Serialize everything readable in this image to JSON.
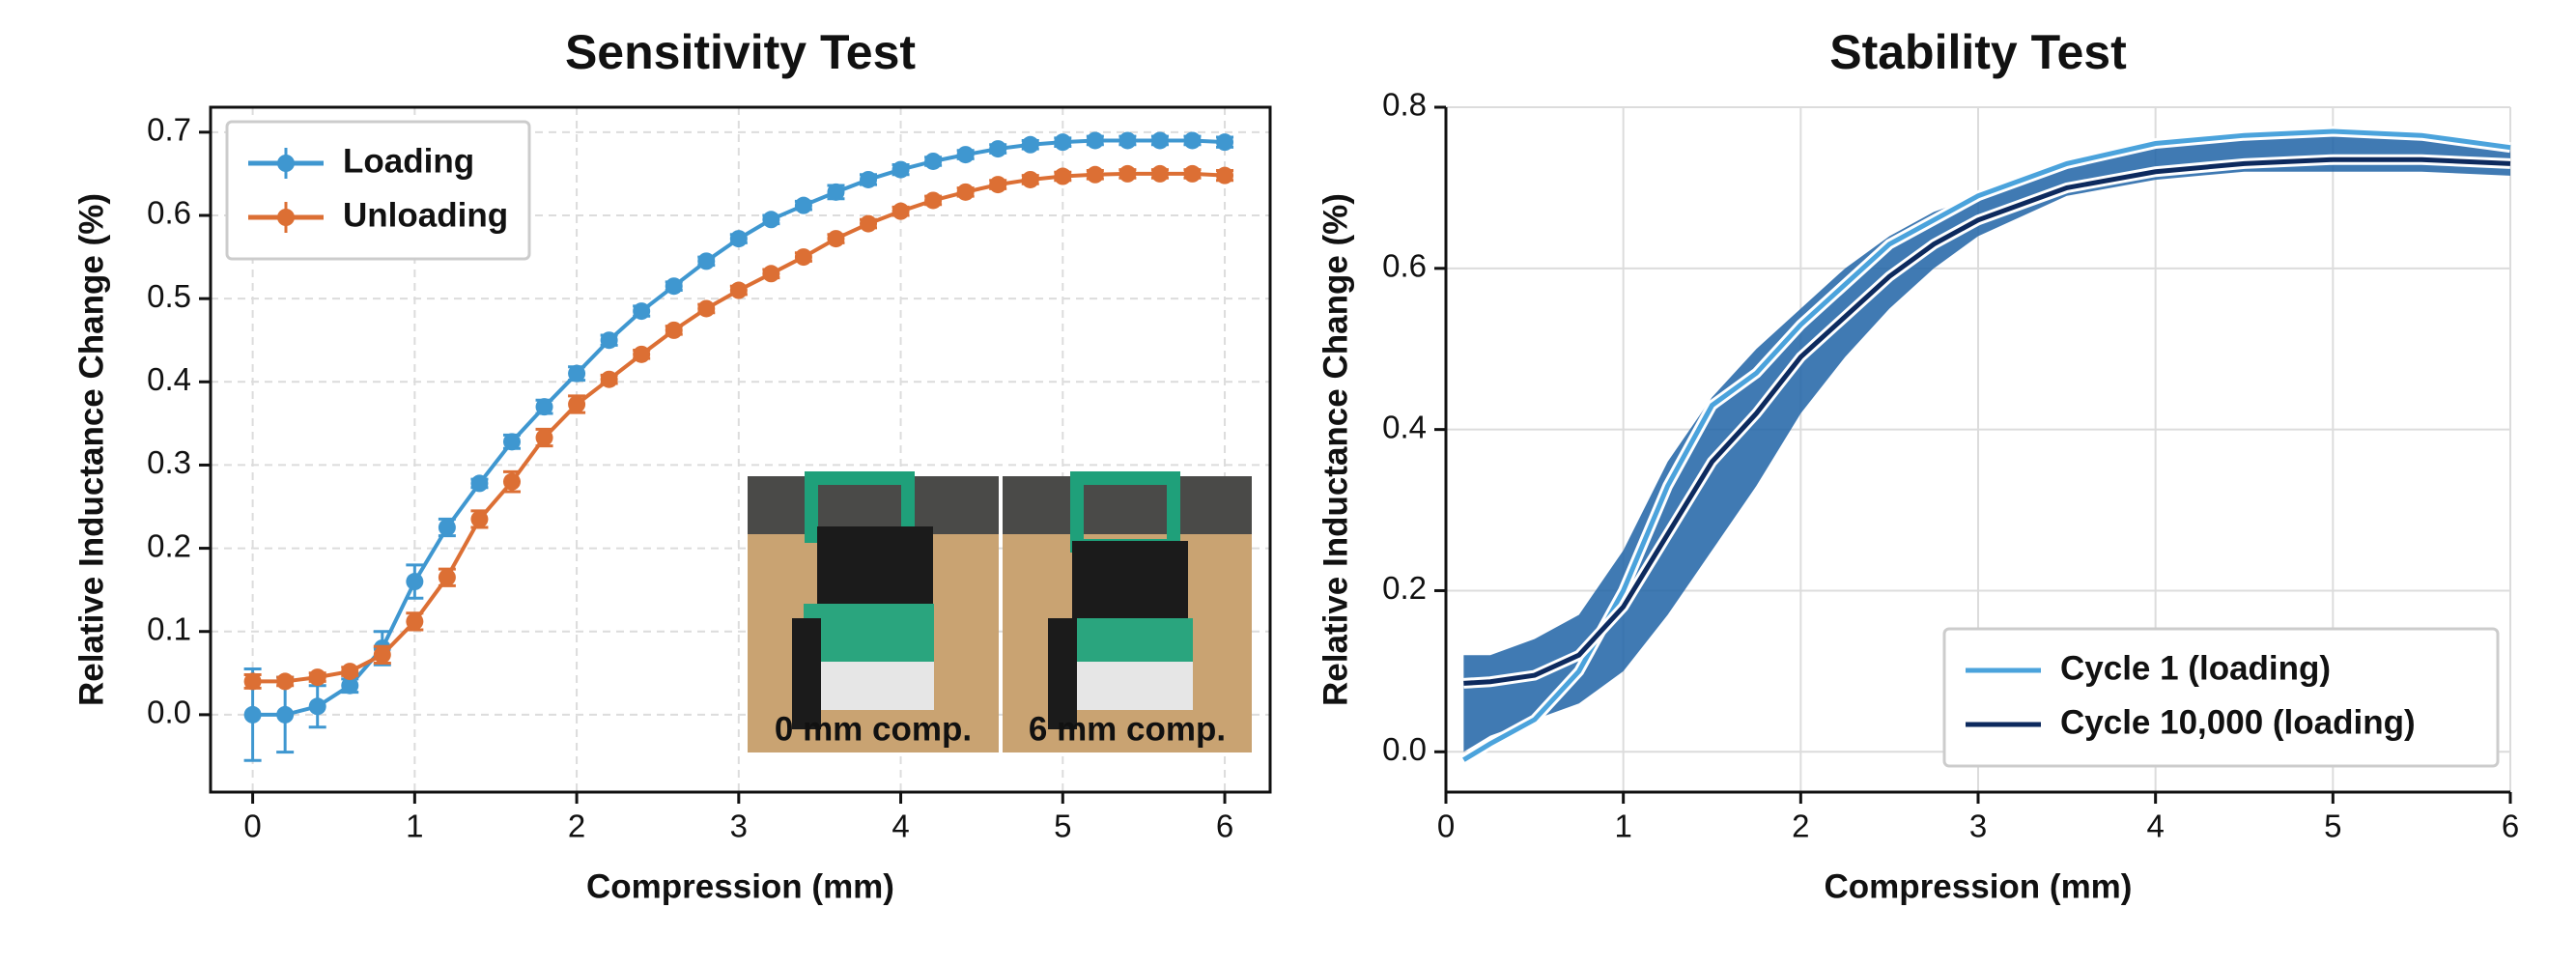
{
  "chart_data": [
    {
      "type": "line",
      "title": "Sensitivity Test",
      "xlabel": "Compression (mm)",
      "ylabel": "Relative Inductance Change (%)",
      "x": [
        0,
        0.2,
        0.4,
        0.6,
        0.8,
        1,
        1.2,
        1.4,
        1.6,
        1.8,
        2,
        2.2,
        2.4,
        2.6,
        2.8,
        3,
        3.2,
        3.4,
        3.6,
        3.8,
        4,
        4.2,
        4.4,
        4.6,
        4.8,
        5,
        5.2,
        5.4,
        5.6,
        5.8,
        6
      ],
      "series": [
        {
          "name": "Loading",
          "color": "#3f97d0",
          "values": [
            0.0,
            0.0,
            0.01,
            0.035,
            0.08,
            0.16,
            0.225,
            0.278,
            0.328,
            0.37,
            0.41,
            0.45,
            0.485,
            0.515,
            0.545,
            0.572,
            0.595,
            0.612,
            0.628,
            0.643,
            0.655,
            0.665,
            0.673,
            0.68,
            0.685,
            0.688,
            0.69,
            0.69,
            0.69,
            0.69,
            0.688
          ],
          "errors": [
            0.055,
            0.045,
            0.025,
            0.008,
            0.02,
            0.02,
            0.01,
            0.005,
            0.008,
            0.008,
            0.008,
            0.006,
            0.006,
            0.005,
            0.005,
            0.005,
            0.005,
            0.005,
            0.008,
            0.006,
            0.006,
            0.005,
            0.005,
            0.005,
            0.005,
            0.005,
            0.005,
            0.005,
            0.005,
            0.005,
            0.006
          ]
        },
        {
          "name": "Unloading",
          "color": "#dc6f34",
          "values": [
            0.04,
            0.04,
            0.045,
            0.052,
            0.072,
            0.112,
            0.165,
            0.235,
            0.28,
            0.333,
            0.373,
            0.403,
            0.433,
            0.462,
            0.488,
            0.51,
            0.53,
            0.55,
            0.572,
            0.59,
            0.605,
            0.618,
            0.628,
            0.637,
            0.643,
            0.647,
            0.649,
            0.65,
            0.65,
            0.65,
            0.648
          ],
          "errors": [
            0.008,
            0.005,
            0.005,
            0.005,
            0.01,
            0.01,
            0.01,
            0.01,
            0.012,
            0.01,
            0.01,
            0.005,
            0.005,
            0.005,
            0.005,
            0.005,
            0.005,
            0.005,
            0.005,
            0.005,
            0.005,
            0.005,
            0.005,
            0.005,
            0.005,
            0.005,
            0.005,
            0.005,
            0.005,
            0.005,
            0.006
          ]
        }
      ],
      "xlim": [
        -0.26,
        6.28
      ],
      "xticks": [
        0,
        1,
        2,
        3,
        4,
        5,
        6
      ],
      "ylim": [
        -0.093,
        0.73
      ],
      "yticks": [
        {
          "value": 0,
          "label": "0.0"
        },
        0.1,
        0.2,
        0.3,
        0.4,
        0.5,
        0.6,
        0.7
      ],
      "grid": true,
      "legend": "upper left",
      "annotations": [
        "0 mm comp.",
        "6 mm comp."
      ]
    },
    {
      "type": "band-line",
      "title": "Stability Test",
      "xlabel": "Compression (mm)",
      "ylabel": "Relative Inductance Change (%)",
      "x": [
        0.1,
        0.25,
        0.5,
        0.75,
        1,
        1.25,
        1.5,
        1.75,
        2,
        2.25,
        2.5,
        2.75,
        3,
        3.5,
        4,
        4.5,
        5,
        5.5,
        6
      ],
      "band": {
        "color": "#1f63a6",
        "lower": [
          0.0,
          0.02,
          0.04,
          0.06,
          0.1,
          0.17,
          0.25,
          0.33,
          0.42,
          0.49,
          0.55,
          0.6,
          0.64,
          0.69,
          0.71,
          0.72,
          0.72,
          0.72,
          0.715
        ],
        "upper": [
          0.12,
          0.12,
          0.14,
          0.17,
          0.25,
          0.36,
          0.44,
          0.5,
          0.55,
          0.6,
          0.64,
          0.67,
          0.69,
          0.73,
          0.75,
          0.76,
          0.765,
          0.76,
          0.75
        ]
      },
      "series": [
        {
          "name": "Cycle 1 (loading)",
          "color": "#4ba3dc",
          "values": [
            -0.01,
            0.01,
            0.04,
            0.1,
            0.2,
            0.33,
            0.43,
            0.47,
            0.53,
            0.58,
            0.63,
            0.66,
            0.69,
            0.73,
            0.755,
            0.765,
            0.77,
            0.765,
            0.75
          ]
        },
        {
          "name": "Cycle 10,000 (loading)",
          "color": "#0d2a5e",
          "values": [
            0.085,
            0.087,
            0.095,
            0.12,
            0.18,
            0.27,
            0.36,
            0.42,
            0.49,
            0.54,
            0.59,
            0.63,
            0.66,
            0.7,
            0.72,
            0.73,
            0.735,
            0.735,
            0.73
          ]
        }
      ],
      "xlim": [
        0,
        6
      ],
      "xticks": [
        0,
        1,
        2,
        3,
        4,
        5,
        6
      ],
      "ylim": [
        -0.05,
        0.8
      ],
      "yticks": [
        {
          "value": 0,
          "label": "0.0"
        },
        0.2,
        0.4,
        0.6,
        0.8
      ],
      "grid": true,
      "legend": "lower right"
    }
  ]
}
